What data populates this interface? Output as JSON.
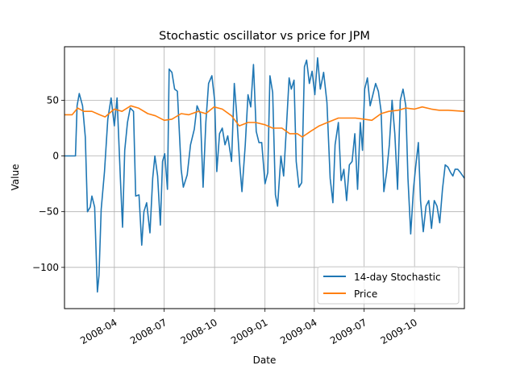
{
  "chart_data": {
    "type": "line",
    "title": "Stochastic oscillator vs price for JPM",
    "xlabel": "Date",
    "ylabel": "Value",
    "xlim": [
      "2008-01-01",
      "2009-12-31"
    ],
    "ylim": [
      -137,
      98
    ],
    "grid": true,
    "legend": "lower right",
    "x_ticks": [
      "2008-04",
      "2008-07",
      "2008-10",
      "2009-01",
      "2009-04",
      "2009-07",
      "2009-10"
    ],
    "y_ticks": [
      -100,
      -50,
      0,
      50
    ],
    "series": [
      {
        "name": "14-day Stochastic",
        "color": "#1f77b4",
        "points": [
          [
            "2008-01-01",
            0
          ],
          [
            "2008-01-21",
            0
          ],
          [
            "2008-01-24",
            45
          ],
          [
            "2008-01-28",
            56
          ],
          [
            "2008-02-03",
            45
          ],
          [
            "2008-02-08",
            17
          ],
          [
            "2008-02-12",
            -50
          ],
          [
            "2008-02-17",
            -46
          ],
          [
            "2008-02-20",
            -36
          ],
          [
            "2008-02-25",
            -46
          ],
          [
            "2008-03-01",
            -122
          ],
          [
            "2008-03-04",
            -107
          ],
          [
            "2008-03-08",
            -48
          ],
          [
            "2008-03-14",
            -14
          ],
          [
            "2008-03-20",
            33
          ],
          [
            "2008-03-26",
            52
          ],
          [
            "2008-04-01",
            27
          ],
          [
            "2008-04-06",
            52
          ],
          [
            "2008-04-12",
            -20
          ],
          [
            "2008-04-16",
            -64
          ],
          [
            "2008-04-20",
            5
          ],
          [
            "2008-04-25",
            30
          ],
          [
            "2008-04-30",
            43
          ],
          [
            "2008-05-06",
            40
          ],
          [
            "2008-05-10",
            -36
          ],
          [
            "2008-05-16",
            -35
          ],
          [
            "2008-05-21",
            -80
          ],
          [
            "2008-05-25",
            -50
          ],
          [
            "2008-05-30",
            -42
          ],
          [
            "2008-06-05",
            -69
          ],
          [
            "2008-06-10",
            -20
          ],
          [
            "2008-06-14",
            0
          ],
          [
            "2008-06-19",
            -18
          ],
          [
            "2008-06-24",
            -62
          ],
          [
            "2008-06-28",
            -5
          ],
          [
            "2008-07-02",
            2
          ],
          [
            "2008-07-07",
            -30
          ],
          [
            "2008-07-10",
            78
          ],
          [
            "2008-07-15",
            75
          ],
          [
            "2008-07-20",
            60
          ],
          [
            "2008-07-25",
            58
          ],
          [
            "2008-08-01",
            -12
          ],
          [
            "2008-08-05",
            -28
          ],
          [
            "2008-08-12",
            -17
          ],
          [
            "2008-08-18",
            10
          ],
          [
            "2008-08-25",
            24
          ],
          [
            "2008-08-30",
            45
          ],
          [
            "2008-09-05",
            38
          ],
          [
            "2008-09-10",
            -28
          ],
          [
            "2008-09-15",
            30
          ],
          [
            "2008-09-20",
            65
          ],
          [
            "2008-09-26",
            72
          ],
          [
            "2008-10-01",
            50
          ],
          [
            "2008-10-05",
            -14
          ],
          [
            "2008-10-10",
            20
          ],
          [
            "2008-10-15",
            25
          ],
          [
            "2008-10-20",
            10
          ],
          [
            "2008-10-25",
            18
          ],
          [
            "2008-11-01",
            -5
          ],
          [
            "2008-11-06",
            65
          ],
          [
            "2008-11-10",
            40
          ],
          [
            "2008-11-16",
            -8
          ],
          [
            "2008-11-20",
            -32
          ],
          [
            "2008-11-26",
            10
          ],
          [
            "2008-12-01",
            55
          ],
          [
            "2008-12-06",
            44
          ],
          [
            "2008-12-11",
            82
          ],
          [
            "2008-12-16",
            22
          ],
          [
            "2008-12-21",
            12
          ],
          [
            "2008-12-26",
            12
          ],
          [
            "2009-01-01",
            -25
          ],
          [
            "2009-01-06",
            -15
          ],
          [
            "2009-01-10",
            72
          ],
          [
            "2009-01-15",
            57
          ],
          [
            "2009-01-20",
            -35
          ],
          [
            "2009-01-24",
            -45
          ],
          [
            "2009-01-30",
            0
          ],
          [
            "2009-02-04",
            -18
          ],
          [
            "2009-02-09",
            25
          ],
          [
            "2009-02-14",
            70
          ],
          [
            "2009-02-18",
            60
          ],
          [
            "2009-02-23",
            68
          ],
          [
            "2009-02-27",
            -5
          ],
          [
            "2009-03-04",
            -28
          ],
          [
            "2009-03-09",
            -24
          ],
          [
            "2009-03-14",
            80
          ],
          [
            "2009-03-18",
            86
          ],
          [
            "2009-03-23",
            65
          ],
          [
            "2009-03-28",
            76
          ],
          [
            "2009-04-02",
            55
          ],
          [
            "2009-04-07",
            88
          ],
          [
            "2009-04-12",
            60
          ],
          [
            "2009-04-18",
            75
          ],
          [
            "2009-04-24",
            48
          ],
          [
            "2009-04-30",
            -20
          ],
          [
            "2009-05-05",
            -42
          ],
          [
            "2009-05-09",
            10
          ],
          [
            "2009-05-15",
            30
          ],
          [
            "2009-05-20",
            -22
          ],
          [
            "2009-05-25",
            -12
          ],
          [
            "2009-05-30",
            -40
          ],
          [
            "2009-06-04",
            -8
          ],
          [
            "2009-06-09",
            -5
          ],
          [
            "2009-06-14",
            20
          ],
          [
            "2009-06-19",
            -30
          ],
          [
            "2009-06-24",
            30
          ],
          [
            "2009-06-28",
            5
          ],
          [
            "2009-07-02",
            60
          ],
          [
            "2009-07-07",
            70
          ],
          [
            "2009-07-12",
            45
          ],
          [
            "2009-07-17",
            55
          ],
          [
            "2009-07-22",
            65
          ],
          [
            "2009-07-27",
            58
          ],
          [
            "2009-08-01",
            40
          ],
          [
            "2009-08-06",
            -32
          ],
          [
            "2009-08-11",
            -15
          ],
          [
            "2009-08-16",
            10
          ],
          [
            "2009-08-21",
            50
          ],
          [
            "2009-08-26",
            20
          ],
          [
            "2009-08-31",
            -30
          ],
          [
            "2009-09-05",
            50
          ],
          [
            "2009-09-10",
            60
          ],
          [
            "2009-09-15",
            45
          ],
          [
            "2009-09-19",
            -20
          ],
          [
            "2009-09-24",
            -70
          ],
          [
            "2009-09-29",
            -30
          ],
          [
            "2009-10-03",
            -10
          ],
          [
            "2009-10-08",
            12
          ],
          [
            "2009-10-12",
            -40
          ],
          [
            "2009-10-17",
            -68
          ],
          [
            "2009-10-22",
            -45
          ],
          [
            "2009-10-27",
            -40
          ],
          [
            "2009-11-01",
            -65
          ],
          [
            "2009-11-06",
            -40
          ],
          [
            "2009-11-11",
            -45
          ],
          [
            "2009-11-16",
            -60
          ],
          [
            "2009-11-21",
            -30
          ],
          [
            "2009-11-26",
            -8
          ],
          [
            "2009-12-01",
            -10
          ],
          [
            "2009-12-06",
            -15
          ],
          [
            "2009-12-10",
            -18
          ],
          [
            "2009-12-14",
            -12
          ],
          [
            "2009-12-19",
            -12
          ],
          [
            "2009-12-24",
            -15
          ],
          [
            "2009-12-31",
            -20
          ]
        ]
      },
      {
        "name": "Price",
        "color": "#ff7f0e",
        "points": [
          [
            "2008-01-01",
            37
          ],
          [
            "2008-01-15",
            37
          ],
          [
            "2008-01-25",
            43
          ],
          [
            "2008-02-05",
            40
          ],
          [
            "2008-02-20",
            40
          ],
          [
            "2008-03-05",
            37
          ],
          [
            "2008-03-15",
            35
          ],
          [
            "2008-04-01",
            42
          ],
          [
            "2008-04-15",
            40
          ],
          [
            "2008-05-01",
            45
          ],
          [
            "2008-05-15",
            43
          ],
          [
            "2008-06-01",
            38
          ],
          [
            "2008-06-15",
            36
          ],
          [
            "2008-07-01",
            32
          ],
          [
            "2008-07-15",
            33
          ],
          [
            "2008-08-01",
            38
          ],
          [
            "2008-08-15",
            37
          ],
          [
            "2008-09-01",
            40
          ],
          [
            "2008-09-15",
            38
          ],
          [
            "2008-09-30",
            44
          ],
          [
            "2008-10-15",
            42
          ],
          [
            "2008-11-01",
            36
          ],
          [
            "2008-11-15",
            27
          ],
          [
            "2008-12-01",
            30
          ],
          [
            "2008-12-15",
            30
          ],
          [
            "2009-01-01",
            28
          ],
          [
            "2009-01-15",
            25
          ],
          [
            "2009-02-01",
            25
          ],
          [
            "2009-02-15",
            20
          ],
          [
            "2009-03-01",
            20
          ],
          [
            "2009-03-10",
            17
          ],
          [
            "2009-03-25",
            22
          ],
          [
            "2009-04-10",
            27
          ],
          [
            "2009-04-25",
            30
          ],
          [
            "2009-05-15",
            34
          ],
          [
            "2009-06-01",
            34
          ],
          [
            "2009-06-15",
            34
          ],
          [
            "2009-07-01",
            33
          ],
          [
            "2009-07-15",
            32
          ],
          [
            "2009-08-01",
            38
          ],
          [
            "2009-08-15",
            40
          ],
          [
            "2009-09-01",
            41
          ],
          [
            "2009-09-15",
            43
          ],
          [
            "2009-10-01",
            42
          ],
          [
            "2009-10-15",
            44
          ],
          [
            "2009-11-01",
            42
          ],
          [
            "2009-11-15",
            41
          ],
          [
            "2009-12-01",
            41
          ],
          [
            "2009-12-31",
            40
          ]
        ]
      }
    ]
  }
}
